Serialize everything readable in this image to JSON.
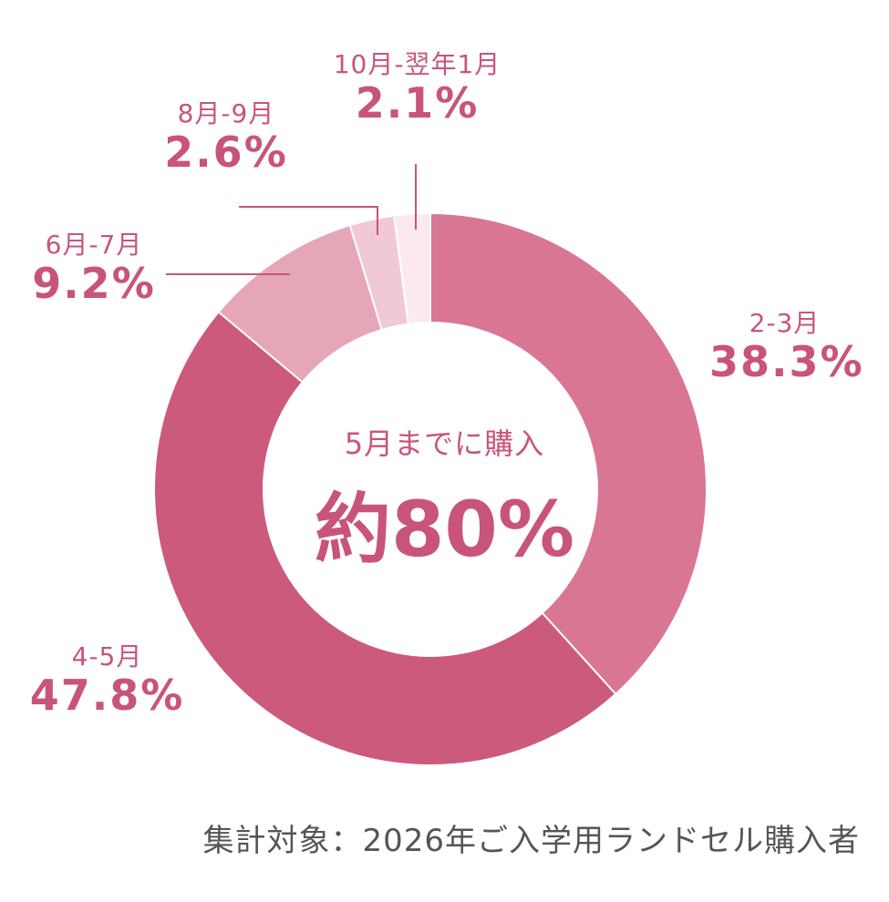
{
  "chart_data": {
    "type": "pie",
    "categories": [
      "2-3月",
      "4-5月",
      "6月-7月",
      "8月-9月",
      "10月-翌年1月"
    ],
    "values": [
      38.3,
      47.8,
      9.2,
      2.6,
      2.1
    ],
    "value_labels": [
      "38.3%",
      "47.8%",
      "9.2%",
      "2.6%",
      "2.1%"
    ],
    "colors": [
      "#d97694",
      "#cc5a7c",
      "#e5a7b8",
      "#f0c9d4",
      "#fbe9ee"
    ],
    "center_subtitle": "5月までに購入",
    "center_value": "約80%",
    "footnote": "集計対象：2026年ご入学用ランドセル購入者"
  }
}
